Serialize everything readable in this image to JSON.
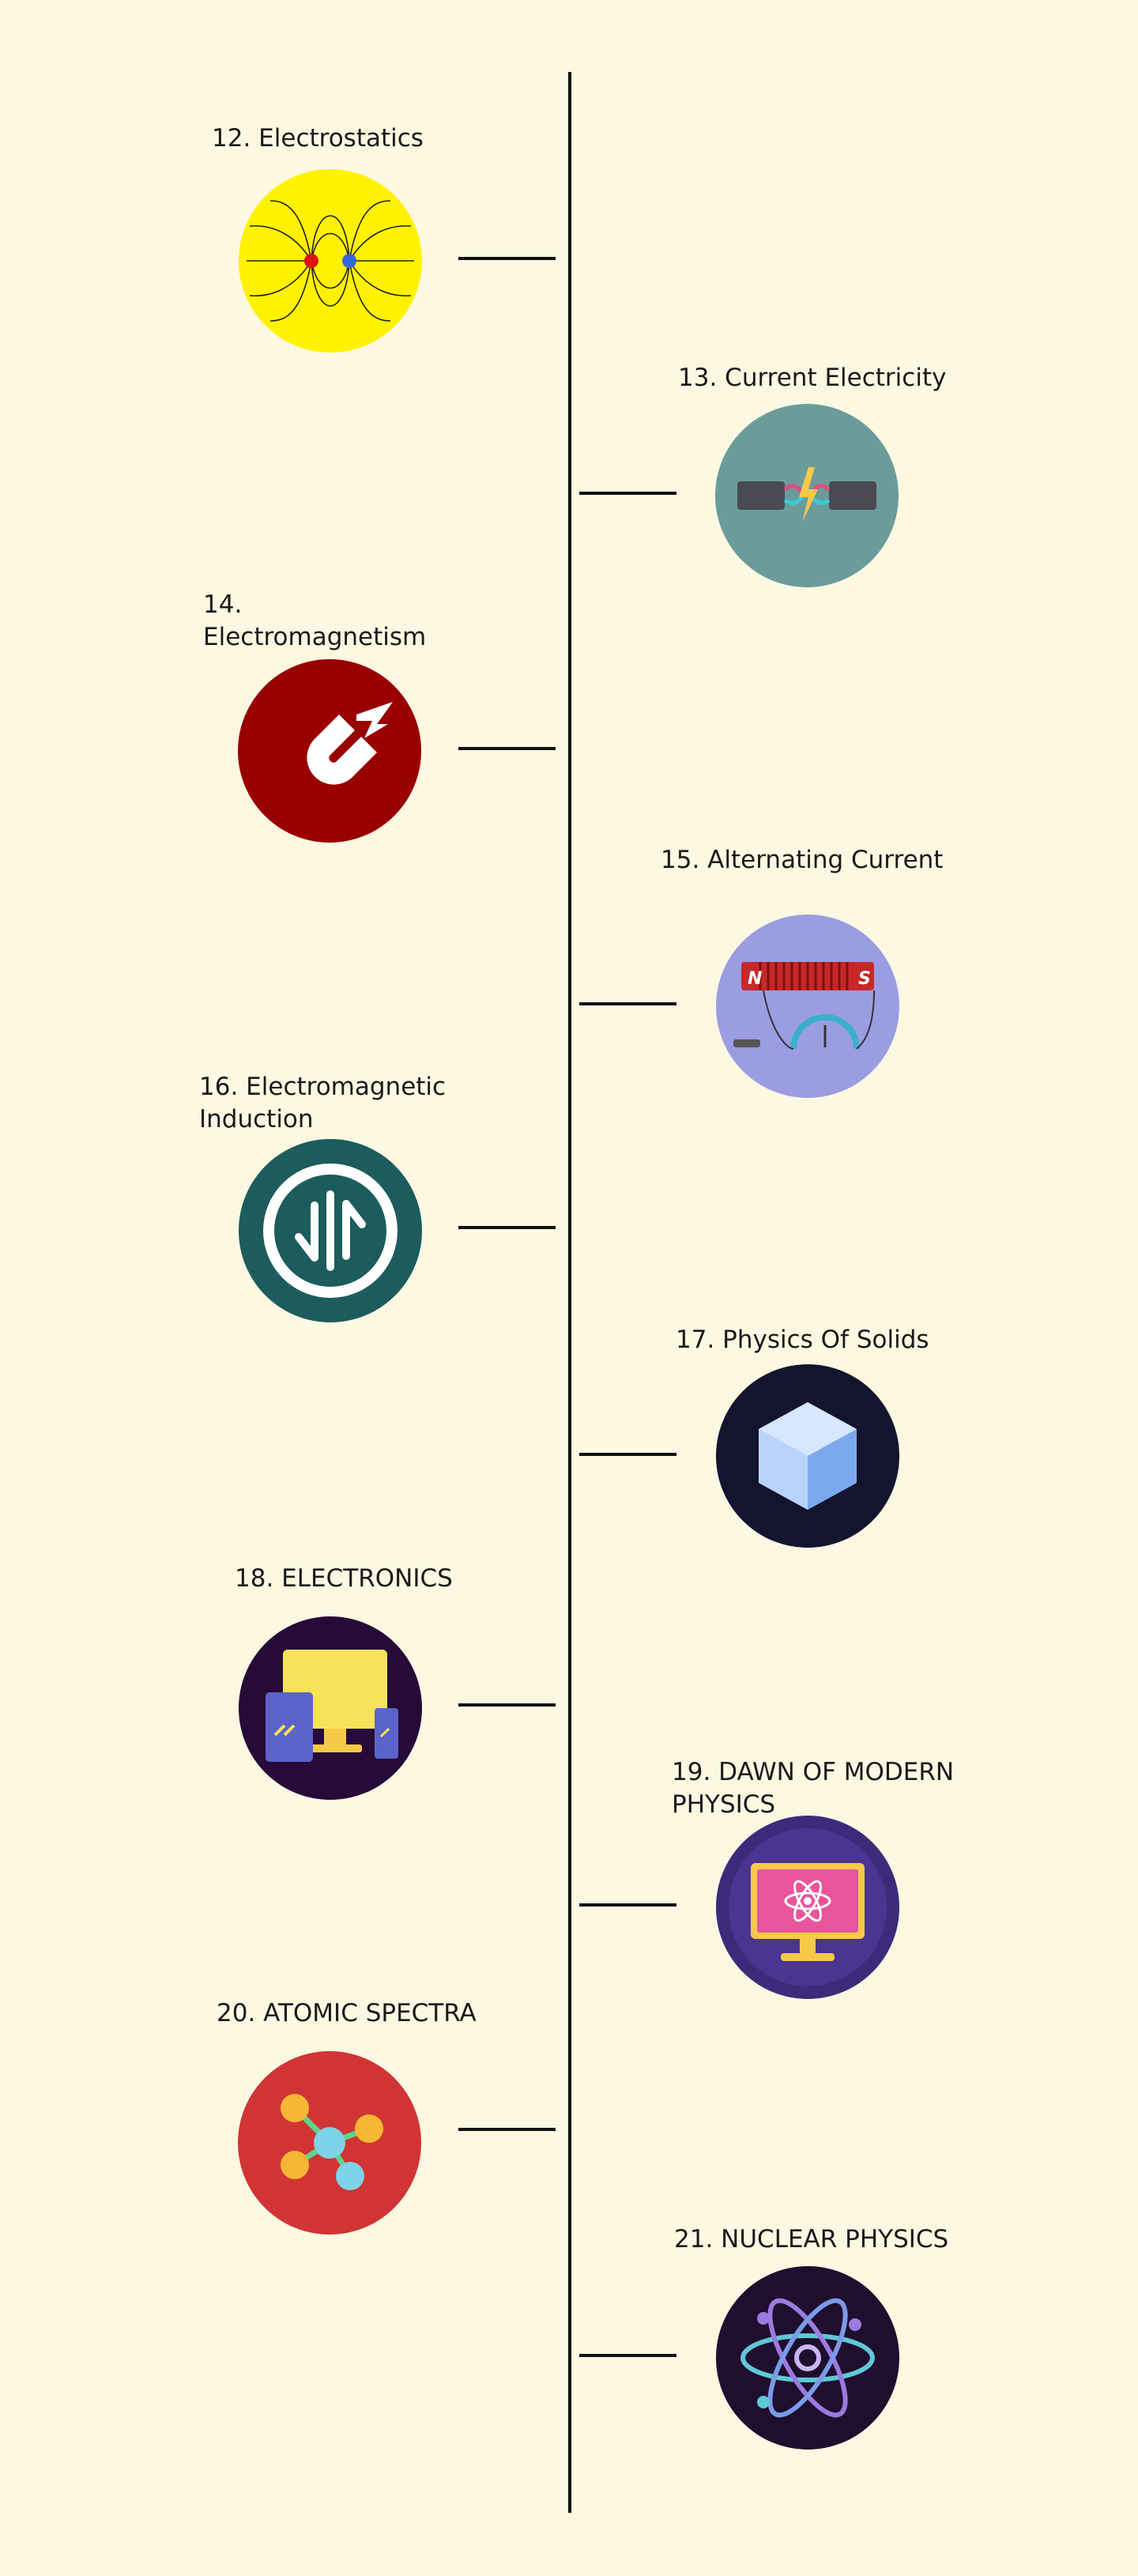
{
  "timeline": {
    "topics": [
      {
        "number": "12.",
        "title": "Electrostatics",
        "icon": "electric-field-icon",
        "bg": "#fff200"
      },
      {
        "number": "13.",
        "title": "Current Electricity",
        "icon": "broken-wire-spark-icon",
        "bg": "#6b9b9b"
      },
      {
        "number": "14.",
        "title": "Electromagnetism",
        "icon": "magnet-lightning-icon",
        "bg": "#990000"
      },
      {
        "number": "15.",
        "title": "Alternating Current",
        "icon": "solenoid-galvanometer-icon",
        "bg": "#9b9de3"
      },
      {
        "number": "16.",
        "title": "Electromagnetic Induction",
        "icon": "induction-arrows-icon",
        "bg": "#1c5c5c"
      },
      {
        "number": "17.",
        "title": "Physics Of Solids",
        "icon": "crystal-cube-icon",
        "bg": "#14142e"
      },
      {
        "number": "18.",
        "title": "ELECTRONICS",
        "icon": "computer-devices-icon",
        "bg": "#260b38"
      },
      {
        "number": "19.",
        "title": "DAWN OF MODERN PHYSICS",
        "icon": "atom-monitor-icon",
        "bg": "#3d2a7a"
      },
      {
        "number": "20.",
        "title": "ATOMIC SPECTRA",
        "icon": "molecule-icon",
        "bg": "#d13434"
      },
      {
        "number": "21.",
        "title": "NUCLEAR PHYSICS",
        "icon": "atom-icon",
        "bg": "#1f0e2e"
      }
    ]
  }
}
